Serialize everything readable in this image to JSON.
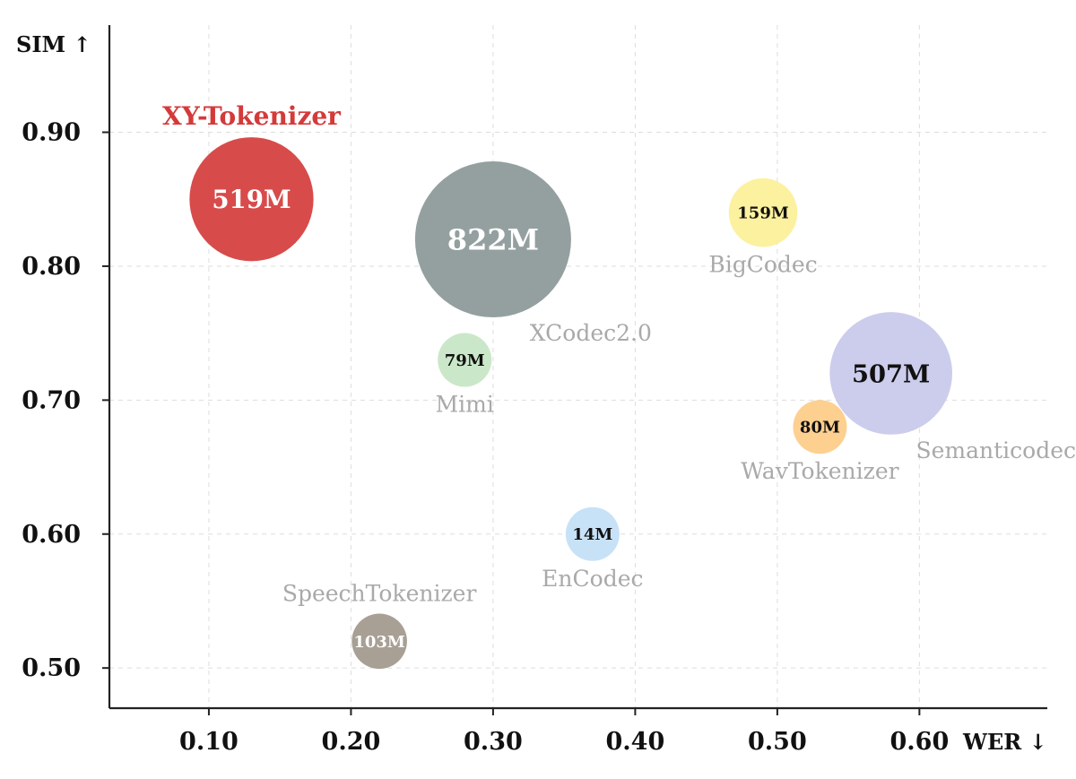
{
  "chart_data": {
    "type": "scatter",
    "title": "",
    "xlabel": "WER ↓",
    "ylabel": "SIM ↑",
    "xlim": [
      0.03,
      0.69
    ],
    "ylim": [
      0.47,
      0.98
    ],
    "grid": true,
    "legend": "none",
    "x_ticks": [
      {
        "value": 0.1,
        "label": "0.10"
      },
      {
        "value": 0.2,
        "label": "0.20"
      },
      {
        "value": 0.3,
        "label": "0.30"
      },
      {
        "value": 0.4,
        "label": "0.40"
      },
      {
        "value": 0.5,
        "label": "0.50"
      },
      {
        "value": 0.6,
        "label": "0.60"
      }
    ],
    "y_ticks": [
      {
        "value": 0.5,
        "label": "0.50"
      },
      {
        "value": 0.6,
        "label": "0.60"
      },
      {
        "value": 0.7,
        "label": "0.70"
      },
      {
        "value": 0.8,
        "label": "0.80"
      },
      {
        "value": 0.9,
        "label": "0.90"
      }
    ],
    "points": [
      {
        "name": "XY-Tokenizer",
        "x": 0.13,
        "y": 0.85,
        "size_label": "519M",
        "params_m": 519,
        "color": "#d64141",
        "label_color": "#ffffff",
        "name_position": "above",
        "highlight": true
      },
      {
        "name": "XCodec2.0",
        "x": 0.3,
        "y": 0.82,
        "size_label": "822M",
        "params_m": 822,
        "color": "#8d9b9a",
        "label_color": "#ffffff",
        "name_position": "below-right",
        "highlight": false
      },
      {
        "name": "BigCodec",
        "x": 0.49,
        "y": 0.84,
        "size_label": "159M",
        "params_m": 159,
        "color": "#fbf09a",
        "label_color": "#111111",
        "name_position": "below",
        "highlight": false
      },
      {
        "name": "Mimi",
        "x": 0.28,
        "y": 0.73,
        "size_label": "79M",
        "params_m": 79,
        "color": "#c8e6c6",
        "label_color": "#111111",
        "name_position": "below",
        "highlight": false
      },
      {
        "name": "Semanticodec",
        "x": 0.58,
        "y": 0.72,
        "size_label": "507M",
        "params_m": 507,
        "color": "#c9c9eb",
        "label_color": "#111111",
        "name_position": "below-right",
        "highlight": false
      },
      {
        "name": "WavTokenizer",
        "x": 0.53,
        "y": 0.68,
        "size_label": "80M",
        "params_m": 80,
        "color": "#fdcd8a",
        "label_color": "#111111",
        "name_position": "below",
        "highlight": false
      },
      {
        "name": "EnCodec",
        "x": 0.37,
        "y": 0.6,
        "size_label": "14M",
        "params_m": 14,
        "color": "#c4e0f7",
        "label_color": "#111111",
        "name_position": "below",
        "highlight": false
      },
      {
        "name": "SpeechTokenizer",
        "x": 0.22,
        "y": 0.52,
        "size_label": "103M",
        "params_m": 103,
        "color": "#a39a8f",
        "label_color": "#ffffff",
        "name_position": "above",
        "highlight": false
      }
    ]
  }
}
